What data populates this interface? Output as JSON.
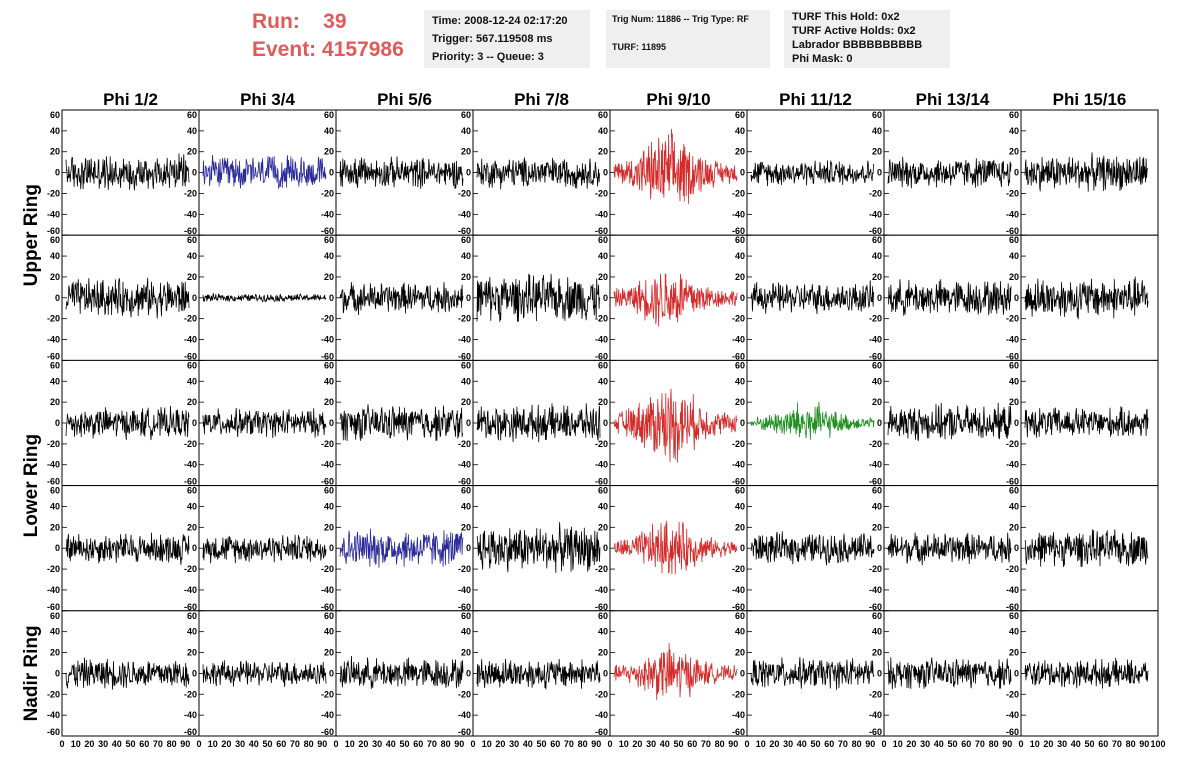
{
  "header": {
    "run_label": "Run:",
    "run_value": "39",
    "event_label": "Event:",
    "event_value": "4157986",
    "info1": [
      "Time: 2008-12-24 02:17:20",
      "Trigger: 567.119508 ms",
      "Priority: 3 -- Queue: 3"
    ],
    "info2": [
      "Trig Num: 11886 -- Trig Type: RF",
      "TURF: 11895"
    ],
    "info3": [
      "TURF This Hold: 0x2",
      "TURF Active Holds: 0x2",
      "Labrador BBBBBBBBBB",
      "Phi Mask: 0"
    ]
  },
  "chart_data": {
    "type": "line",
    "columns": [
      "Phi 1/2",
      "Phi 3/4",
      "Phi 5/6",
      "Phi 7/8",
      "Phi 9/10",
      "Phi 11/12",
      "Phi 13/14",
      "Phi 15/16"
    ],
    "row_groups": [
      {
        "label": "Upper Ring",
        "rows": [
          0,
          1
        ]
      },
      {
        "label": "Lower Ring",
        "rows": [
          2,
          3
        ]
      },
      {
        "label": "Nadir Ring",
        "rows": [
          4
        ]
      }
    ],
    "ylim": [
      -60,
      60
    ],
    "yticks": [
      -60,
      -40,
      -20,
      0,
      20,
      40,
      60
    ],
    "xlim": [
      0,
      100
    ],
    "xtick_labels": [
      "0",
      "10",
      "20",
      "30",
      "40",
      "50",
      "60",
      "70",
      "80",
      "90",
      "100"
    ],
    "colors": {
      "default": "#000000",
      "red": "#d42a2a",
      "blue": "#2a2a9a",
      "green": "#1f8f1f"
    },
    "panel_colors": [
      [
        "default",
        "blue",
        "default",
        "default",
        "red",
        "default",
        "default",
        "default"
      ],
      [
        "default",
        "default",
        "default",
        "default",
        "red",
        "default",
        "default",
        "default"
      ],
      [
        "default",
        "default",
        "default",
        "default",
        "red",
        "green",
        "default",
        "default"
      ],
      [
        "default",
        "default",
        "blue",
        "default",
        "red",
        "default",
        "default",
        "default"
      ],
      [
        "default",
        "default",
        "default",
        "default",
        "red",
        "default",
        "default",
        "default"
      ]
    ],
    "panel_amplitude": [
      [
        14,
        13,
        12,
        12,
        22,
        10,
        12,
        14
      ],
      [
        15,
        3,
        12,
        18,
        18,
        12,
        14,
        16
      ],
      [
        12,
        11,
        14,
        14,
        22,
        12,
        14,
        12
      ],
      [
        12,
        11,
        15,
        18,
        16,
        12,
        12,
        14
      ],
      [
        12,
        10,
        12,
        12,
        16,
        12,
        12,
        11
      ]
    ]
  }
}
